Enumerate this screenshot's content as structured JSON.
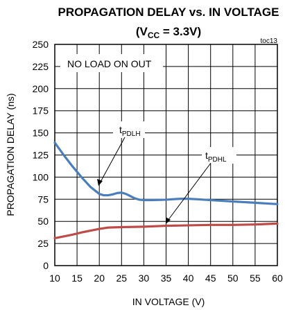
{
  "chart_data": {
    "type": "line",
    "title": "PROPAGATION DELAY vs. IN VOLTAGE",
    "subtitle": {
      "prefix": "(V",
      "sub": "CC",
      "suffix": " = 3.3V)"
    },
    "chart_id": "toc13",
    "xlabel": "IN VOLTAGE (V)",
    "ylabel": "PROPAGATION DELAY (ns)",
    "xlim": [
      10,
      60
    ],
    "ylim": [
      0,
      250
    ],
    "xticks": [
      10,
      15,
      20,
      25,
      30,
      35,
      40,
      45,
      50,
      55,
      60
    ],
    "yticks": [
      0,
      25,
      50,
      75,
      100,
      125,
      150,
      175,
      200,
      225,
      250
    ],
    "grid": true,
    "annotation": "NO LOAD ON OUT",
    "series": [
      {
        "name": "tPDLH",
        "label": {
          "main": "t",
          "sub": "PDLH"
        },
        "color": "#4a7ebb",
        "x": [
          10,
          12,
          14,
          16,
          18,
          20,
          21,
          22,
          23,
          24,
          25,
          26,
          27,
          28,
          29,
          30,
          32,
          35,
          38,
          40,
          42,
          45,
          50,
          55,
          60
        ],
        "y": [
          139,
          125,
          112,
          100,
          89,
          81,
          79.5,
          79.5,
          80.5,
          82,
          82.5,
          81,
          78.5,
          76,
          74.5,
          74,
          74,
          74.5,
          75.5,
          75.5,
          75,
          74,
          72.5,
          71,
          69.5
        ]
      },
      {
        "name": "tPDHL",
        "label": {
          "main": "t",
          "sub": "PDHL"
        },
        "color": "#be4b48",
        "x": [
          10,
          12,
          14,
          16,
          18,
          20,
          22,
          25,
          30,
          35,
          40,
          45,
          50,
          55,
          60
        ],
        "y": [
          31,
          33,
          35,
          37.5,
          39.5,
          41.5,
          43,
          43.5,
          44,
          45,
          45.5,
          46,
          46,
          46.5,
          47.5
        ]
      }
    ]
  }
}
